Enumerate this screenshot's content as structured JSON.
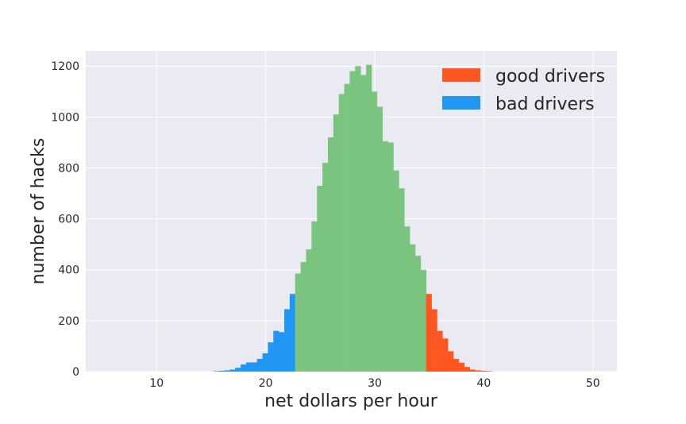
{
  "chart_data": {
    "type": "bar",
    "title": "",
    "xlabel": "net dollars per hour",
    "ylabel": "number of hacks",
    "xlim": [
      3.5,
      52.2
    ],
    "ylim": [
      0,
      1260
    ],
    "xticks": [
      10,
      20,
      30,
      40,
      50
    ],
    "yticks": [
      0,
      200,
      400,
      600,
      800,
      1000,
      1200
    ],
    "grid": true,
    "legend_position": "top-right",
    "bin_start": 15.2,
    "bin_width": 0.5,
    "series": [
      {
        "name": "bad drivers",
        "color": "#2196F3",
        "values": [
          2,
          3,
          5,
          8,
          15,
          28,
          36,
          36,
          50,
          72,
          115,
          160,
          155,
          245,
          305
        ]
      },
      {
        "name": "good drivers",
        "color": "#FF5722",
        "values": [
          305,
          245,
          160,
          130,
          80,
          50,
          35,
          18,
          8,
          5,
          3,
          2
        ]
      },
      {
        "name": "",
        "color": "#7BC47F",
        "values": [
          385,
          430,
          480,
          590,
          730,
          820,
          920,
          1010,
          1090,
          1130,
          1180,
          1200,
          1165,
          1205,
          1100,
          1040,
          905,
          900,
          790,
          720,
          570,
          500,
          455,
          400
        ]
      }
    ]
  }
}
